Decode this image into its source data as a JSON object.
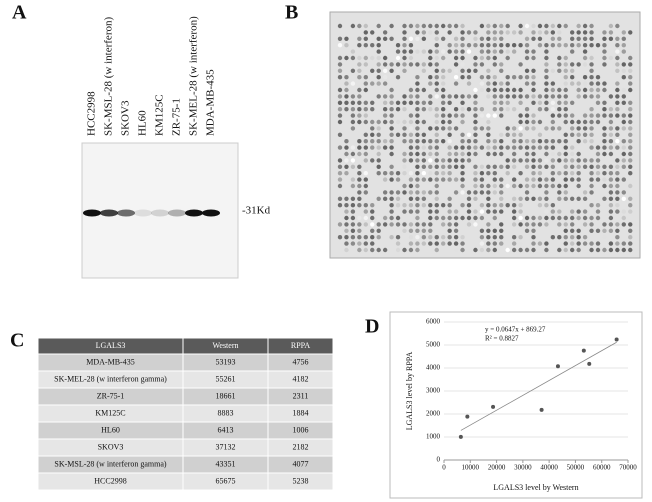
{
  "panel_a": {
    "label": "A",
    "lanes": [
      "HCC2998",
      "SK-MSL-28 (w interferon)",
      "SKOV3",
      "HL60",
      "KM125C",
      "ZR-75-1",
      "SK-MEL-28 (w interferon)",
      "MDA-MB-435"
    ],
    "marker": "-31Kd"
  },
  "panel_b": {
    "label": "B"
  },
  "panel_c": {
    "label": "C",
    "table": {
      "header": [
        "LGALS3",
        "Western",
        "RPPA"
      ],
      "rows": [
        [
          "MDA-MB-435",
          53193,
          4756
        ],
        [
          "SK-MEL-28 (w interferon gamma)",
          55261,
          4182
        ],
        [
          "ZR-75-1",
          18661,
          2311
        ],
        [
          "KM125C",
          8883,
          1884
        ],
        [
          "HL60",
          6413,
          1006
        ],
        [
          "SKOV3",
          37132,
          2182
        ],
        [
          "SK-MSL-28 (w interferon gamma)",
          43351,
          4077
        ],
        [
          "HCC2998",
          65675,
          5238
        ]
      ]
    }
  },
  "chart_data": {
    "type": "scatter",
    "panel_label": "D",
    "x_label": "LGALS3 level by Western",
    "y_label": "LGALS3 level by RPPA",
    "annotations": [
      "y = 0.0647x + 869.27",
      "R² = 0.8827"
    ],
    "x": [
      53193,
      55261,
      18661,
      8883,
      6413,
      37132,
      43351,
      65675
    ],
    "values": [
      4756,
      4182,
      2311,
      1884,
      1006,
      2182,
      4077,
      5238
    ],
    "color": "#555555",
    "trendline": {
      "slope": 0.0647,
      "intercept": 869.27
    },
    "xlim": [
      0,
      70000
    ],
    "xticks": [
      0,
      10000,
      20000,
      30000,
      40000,
      50000,
      60000,
      70000
    ],
    "ylim": [
      0,
      6000
    ],
    "yticks": [
      0,
      1000,
      2000,
      3000,
      4000,
      5000,
      6000
    ],
    "grid": true
  }
}
